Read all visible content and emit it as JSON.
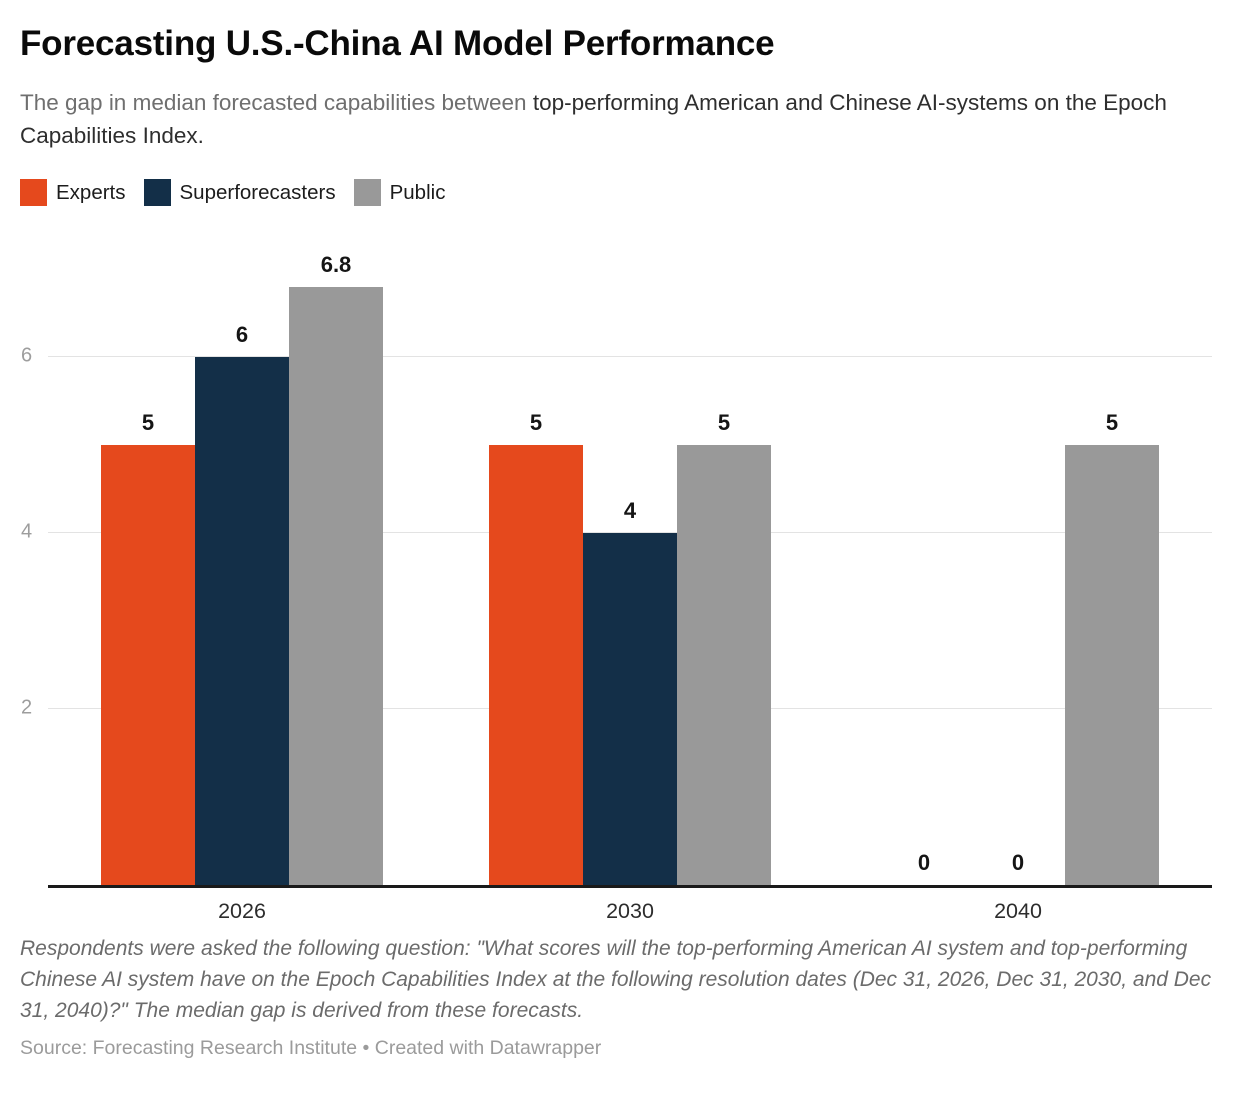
{
  "header": {
    "title": "Forecasting U.S.-China AI Model Performance",
    "subtitle_normal": "The gap in median forecasted capabilities between ",
    "subtitle_emphasis": "top-performing American and Chinese AI-systems on the Epoch Capabilities Index."
  },
  "chart_data": {
    "type": "bar",
    "title": "Forecasting U.S.-China AI Model Performance",
    "subtitle": "The gap in median forecasted capabilities between top-performing American and Chinese AI-systems on the Epoch Capabilities Index.",
    "categories": [
      "2026",
      "2030",
      "2040"
    ],
    "series": [
      {
        "name": "Experts",
        "color": "#e5491d",
        "values": [
          5,
          5,
          0
        ]
      },
      {
        "name": "Superforecasters",
        "color": "#132f48",
        "values": [
          6,
          4,
          0
        ]
      },
      {
        "name": "Public",
        "color": "#999999",
        "values": [
          6.8,
          5,
          5
        ]
      }
    ],
    "ylim": [
      0,
      7.3
    ],
    "yticks": [
      2,
      4,
      6
    ],
    "grid": true,
    "value_labels": true,
    "legend_position": "top-left",
    "xlabel": "",
    "ylabel": ""
  },
  "colors": {
    "axis_line": "#1a1a1a",
    "gridline": "#e3e3e3",
    "y_tick_label": "#9d9d9d",
    "x_tick_label": "#2d2d2d",
    "value_label": "#151515"
  },
  "footer": {
    "note": "Respondents were asked the following question: \"What scores will the top-performing American AI system and top-performing Chinese AI system have on the Epoch Capabilities Index at the following resolution dates (Dec 31, 2026, Dec 31, 2030, and Dec 31, 2040)?\" The median gap is derived from these forecasts.",
    "source": "Source: Forecasting Research Institute • Created with Datawrapper"
  }
}
